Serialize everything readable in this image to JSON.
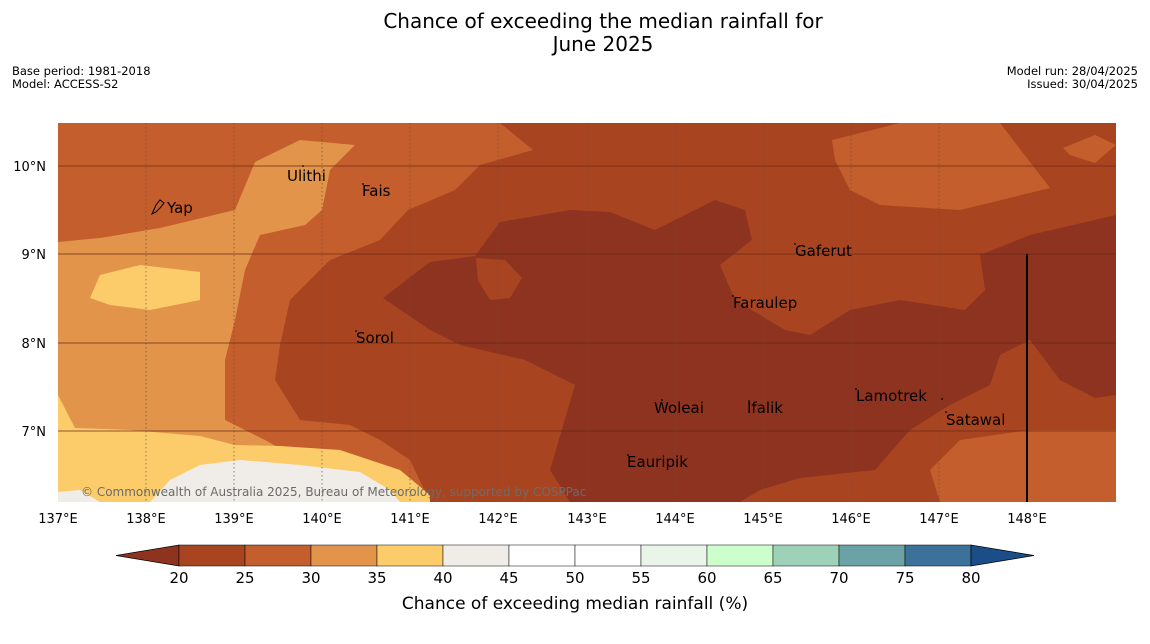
{
  "title_line1": "Chance of exceeding the median rainfall for",
  "title_line2": "June 2025",
  "meta": {
    "base_period": "Base period: 1981-2018",
    "model": "Model: ACCESS-S2",
    "model_run": "Model run: 28/04/2025",
    "issued": "Issued: 30/04/2025"
  },
  "copyright": "© Commonwealth of Australia 2025, Bureau of Meteorology, supported by COSPPac",
  "lon_labels": [
    "137°E",
    "138°E",
    "139°E",
    "140°E",
    "141°E",
    "142°E",
    "143°E",
    "144°E",
    "145°E",
    "146°E",
    "147°E",
    "148°E"
  ],
  "lat_labels": [
    "10°N",
    "9°N",
    "8°N",
    "7°N"
  ],
  "places": [
    {
      "name": "Yap"
    },
    {
      "name": "Ulithi"
    },
    {
      "name": "Fais"
    },
    {
      "name": "Gaferut"
    },
    {
      "name": "Faraulep"
    },
    {
      "name": "Sorol"
    },
    {
      "name": "Woleai"
    },
    {
      "name": "Ifalik"
    },
    {
      "name": "Lamotrek"
    },
    {
      "name": "Satawal"
    },
    {
      "name": "Eauripik"
    }
  ],
  "colorbar": {
    "ticks": [
      "20",
      "25",
      "30",
      "35",
      "40",
      "45",
      "50",
      "55",
      "60",
      "65",
      "70",
      "75",
      "80"
    ],
    "colors": [
      "#a84520",
      "#c55e2d",
      "#e2954a",
      "#fdcc6a",
      "#f0ede8",
      "#ffffff",
      "#ffffff",
      "#e8f5e8",
      "#ccffcc",
      "#9dd2b8",
      "#6aa2a5",
      "#3c7299"
    ],
    "low_color": "#8e3320",
    "high_color": "#1b4e88",
    "label": "Chance of exceeding median rainfall (%)"
  }
}
